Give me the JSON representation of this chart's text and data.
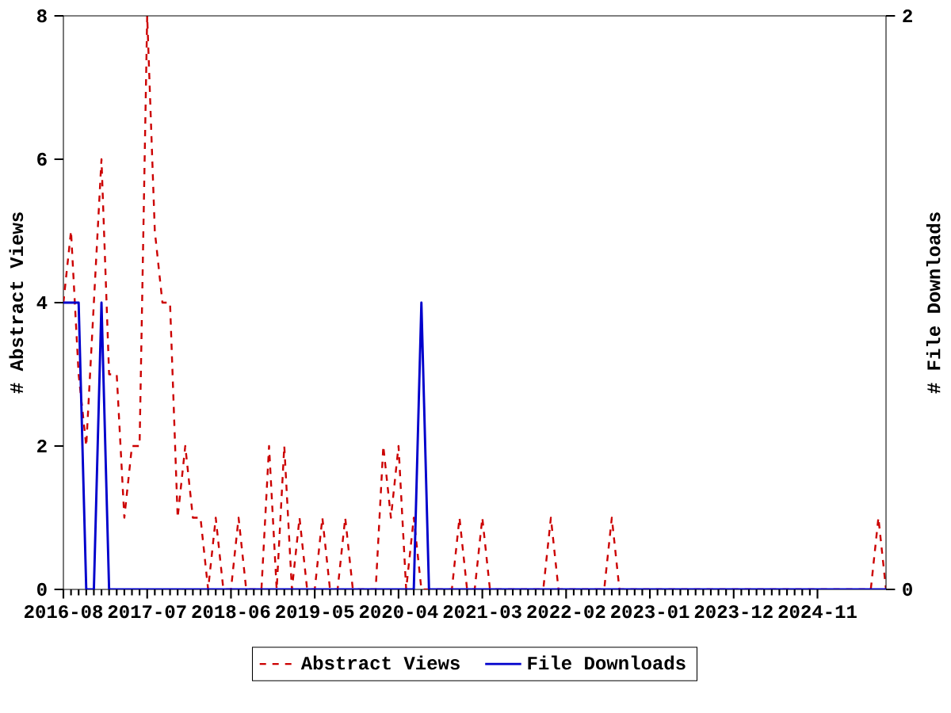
{
  "chart_data": {
    "type": "line",
    "ylabel": "# Abstract Views",
    "y2label": "# File Downloads",
    "x": [
      "2016-08",
      "2016-09",
      "2016-10",
      "2016-11",
      "2016-12",
      "2017-01",
      "2017-02",
      "2017-03",
      "2017-04",
      "2017-05",
      "2017-06",
      "2017-07",
      "2017-08",
      "2017-09",
      "2017-10",
      "2017-11",
      "2017-12",
      "2018-01",
      "2018-02",
      "2018-03",
      "2018-04",
      "2018-05",
      "2018-06",
      "2018-07",
      "2018-08",
      "2018-09",
      "2018-10",
      "2018-11",
      "2018-12",
      "2019-01",
      "2019-02",
      "2019-03",
      "2019-04",
      "2019-05",
      "2019-06",
      "2019-07",
      "2019-08",
      "2019-09",
      "2019-10",
      "2019-11",
      "2019-12",
      "2020-01",
      "2020-02",
      "2020-03",
      "2020-04",
      "2020-05",
      "2020-06",
      "2020-07",
      "2020-08",
      "2020-09",
      "2020-10",
      "2020-11",
      "2020-12",
      "2021-01",
      "2021-02",
      "2021-03",
      "2021-04",
      "2021-05",
      "2021-06",
      "2021-07",
      "2021-08",
      "2021-09",
      "2021-10",
      "2021-11",
      "2021-12",
      "2022-01",
      "2022-02",
      "2022-03",
      "2022-04",
      "2022-05",
      "2022-06",
      "2022-07",
      "2022-08",
      "2022-09",
      "2022-10",
      "2022-11",
      "2022-12",
      "2023-01",
      "2023-02",
      "2023-03",
      "2023-04",
      "2023-05",
      "2023-06",
      "2023-07",
      "2023-08",
      "2023-09",
      "2023-10",
      "2023-11",
      "2023-12",
      "2024-01",
      "2024-02",
      "2024-03",
      "2024-04",
      "2024-05",
      "2024-06",
      "2024-07",
      "2024-08",
      "2024-09",
      "2024-10",
      "2024-11",
      "2024-12",
      "2025-01",
      "2025-02",
      "2025-03",
      "2025-04",
      "2025-05",
      "2025-06",
      "2025-07",
      "2025-08"
    ],
    "series": [
      {
        "name": "Abstract Views",
        "color": "#cc0000",
        "line_style": "dashed",
        "values": [
          4,
          5,
          3,
          2,
          4,
          6,
          3,
          3,
          1,
          2,
          2,
          8,
          5,
          4,
          4,
          1,
          2,
          1,
          1,
          0,
          1,
          0,
          0,
          1,
          0,
          0,
          0,
          2,
          0,
          2,
          0,
          1,
          0,
          0,
          1,
          0,
          0,
          1,
          0,
          0,
          0,
          0,
          2,
          1,
          2,
          0,
          1,
          0,
          0,
          0,
          0,
          0,
          1,
          0,
          0,
          1,
          0,
          0,
          0,
          0,
          0,
          0,
          0,
          0,
          1,
          0,
          0,
          0,
          0,
          0,
          0,
          0,
          1,
          0,
          0,
          0,
          0,
          0,
          0,
          0,
          0,
          0,
          0,
          0,
          0,
          0,
          0,
          0,
          0,
          0,
          0,
          0,
          0,
          0,
          0,
          0,
          0,
          0,
          0,
          0,
          0,
          0,
          0,
          0,
          0,
          0,
          0,
          1,
          0
        ]
      },
      {
        "name": "File Downloads",
        "color": "#0000cc",
        "line_style": "solid",
        "axis": "y2",
        "values": [
          1,
          1,
          1,
          0,
          0,
          1,
          0,
          0,
          0,
          0,
          0,
          0,
          0,
          0,
          0,
          0,
          0,
          0,
          0,
          0,
          0,
          0,
          0,
          0,
          0,
          0,
          0,
          0,
          0,
          0,
          0,
          0,
          0,
          0,
          0,
          0,
          0,
          0,
          0,
          0,
          0,
          0,
          0,
          0,
          0,
          0,
          0,
          1,
          0,
          0,
          0,
          0,
          0,
          0,
          0,
          0,
          0,
          0,
          0,
          0,
          0,
          0,
          0,
          0,
          0,
          0,
          0,
          0,
          0,
          0,
          0,
          0,
          0,
          0,
          0,
          0,
          0,
          0,
          0,
          0,
          0,
          0,
          0,
          0,
          0,
          0,
          0,
          0,
          0,
          0,
          0,
          0,
          0,
          0,
          0,
          0,
          0,
          0,
          0,
          0,
          0,
          0,
          0,
          0,
          0,
          0,
          0,
          0,
          0
        ]
      }
    ],
    "xlim": [
      "2016-08",
      "2025-08"
    ],
    "xticks": [
      "2016-08",
      "2017-07",
      "2018-06",
      "2019-05",
      "2020-04",
      "2021-03",
      "2022-02",
      "2023-01",
      "2023-12",
      "2024-11"
    ],
    "ylim": [
      0,
      8
    ],
    "yticks": [
      0,
      2,
      4,
      6,
      8
    ],
    "y2lim": [
      0,
      2
    ],
    "y2ticks": [
      0,
      2
    ],
    "legend": "bottom"
  }
}
